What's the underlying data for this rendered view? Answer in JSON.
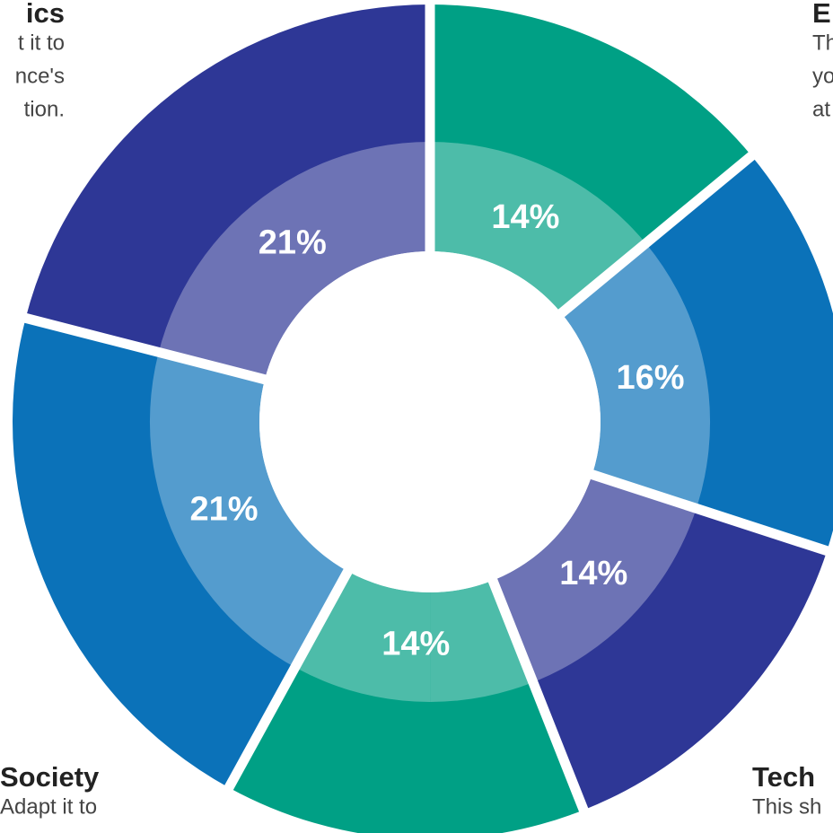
{
  "chart_data": {
    "type": "donut",
    "categories": [
      null,
      null,
      null,
      null,
      null,
      null
    ],
    "series": [
      {
        "values": [
          14,
          16,
          14,
          14,
          21,
          21
        ],
        "value_labels": [
          "14%",
          "16%",
          "14%",
          "14%",
          "21%",
          "21%"
        ]
      }
    ],
    "colors": [
      "#00a085",
      "#0b72b9",
      "#2e3796",
      "#00a085",
      "#0b72b9",
      "#2e3796"
    ],
    "annotations": [
      {
        "title": "ics",
        "lines": [
          "t it to",
          "nce's",
          "tion."
        ]
      },
      {
        "title": "E",
        "lines": [
          "Th",
          "yo",
          "at"
        ]
      },
      {
        "title": "Society",
        "lines": [
          "Adapt it to"
        ]
      },
      {
        "title": "Tech",
        "lines": [
          "This sh"
        ]
      }
    ]
  }
}
